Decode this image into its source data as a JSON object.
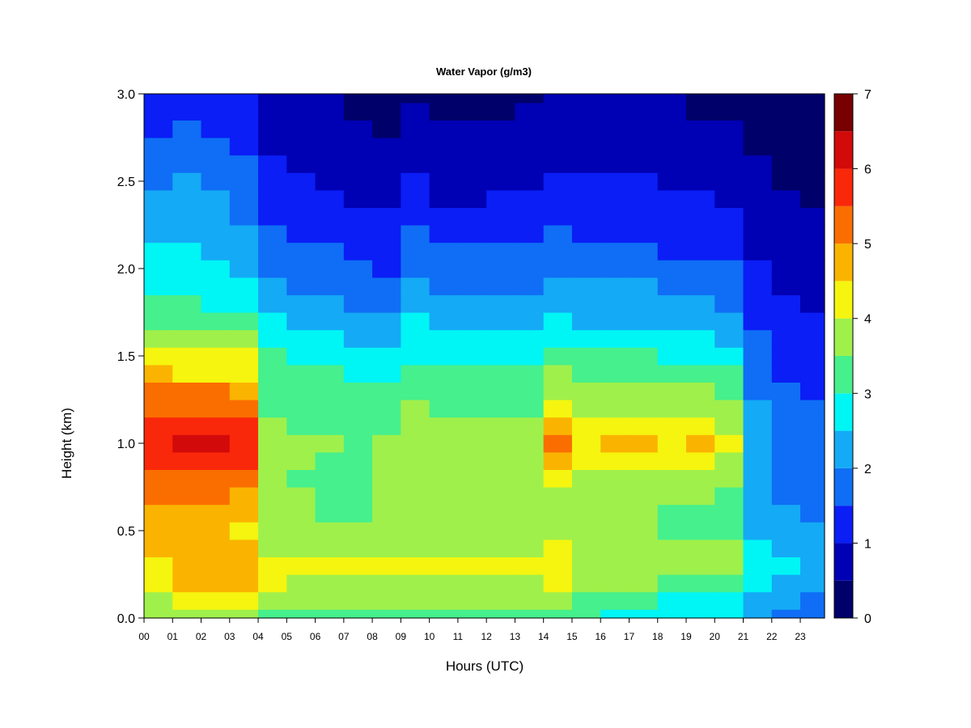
{
  "chart_data": {
    "type": "heatmap",
    "title": "Water Vapor (g/m3)",
    "xlabel": "Hours (UTC)",
    "ylabel": "Height (km)",
    "xlim": [
      0,
      23.85
    ],
    "ylim": [
      0,
      3.0
    ],
    "x_tick_labels": [
      "00",
      "01",
      "02",
      "03",
      "04",
      "05",
      "06",
      "07",
      "08",
      "09",
      "10",
      "11",
      "12",
      "13",
      "14",
      "15",
      "16",
      "17",
      "18",
      "19",
      "20",
      "21",
      "22",
      "23"
    ],
    "y_tick_values": [
      0.0,
      0.5,
      1.0,
      1.5,
      2.0,
      2.5,
      3.0
    ],
    "y_tick_labels": [
      "0.0",
      "0.5",
      "1.0",
      "1.5",
      "2.0",
      "2.5",
      "3.0"
    ],
    "colorbar": {
      "levels": [
        0,
        0.5,
        1,
        1.5,
        2,
        2.5,
        3,
        3.5,
        4,
        4.5,
        5,
        5.5,
        6,
        6.5,
        7
      ],
      "colors": [
        "#00006B",
        "#0000B4",
        "#0A1EF5",
        "#0F6EF5",
        "#14AAF5",
        "#00F5F5",
        "#46F08C",
        "#A0F04B",
        "#F5F50F",
        "#FAB400",
        "#FA6E00",
        "#FA280A",
        "#D20A0A",
        "#780000"
      ],
      "tick_values": [
        0,
        1,
        2,
        3,
        4,
        5,
        6,
        7
      ],
      "tick_labels": [
        "0",
        "1",
        "2",
        "3",
        "4",
        "5",
        "6",
        "7"
      ]
    },
    "grid": false,
    "legend": "colorbar-right",
    "heights_km": [
      0.0,
      0.1,
      0.2,
      0.3,
      0.4,
      0.5,
      0.6,
      0.7,
      0.8,
      0.9,
      1.0,
      1.1,
      1.2,
      1.3,
      1.4,
      1.5,
      1.6,
      1.7,
      1.8,
      1.9,
      2.0,
      2.1,
      2.2,
      2.3,
      2.4,
      2.5,
      2.6,
      2.7,
      2.8,
      2.9,
      3.0
    ],
    "series": [
      {
        "hour": 0.5,
        "values": [
          3.6,
          3.8,
          4.2,
          4.4,
          4.6,
          4.7,
          4.9,
          5.0,
          5.3,
          5.8,
          5.9,
          5.7,
          5.3,
          5.0,
          4.5,
          4.1,
          3.9,
          3.4,
          3.0,
          2.9,
          2.7,
          2.5,
          2.3,
          2.2,
          2.0,
          1.9,
          1.7,
          1.5,
          1.2,
          1.1,
          1.0
        ]
      },
      {
        "hour": 1.5,
        "values": [
          3.7,
          4.0,
          4.6,
          4.8,
          4.5,
          4.6,
          4.8,
          5.0,
          5.4,
          5.9,
          6.0,
          5.8,
          5.4,
          5.0,
          4.4,
          4.1,
          3.9,
          3.3,
          3.0,
          2.9,
          2.7,
          2.6,
          2.4,
          2.2,
          2.1,
          2.0,
          1.8,
          1.6,
          1.5,
          1.3,
          1.2
        ]
      },
      {
        "hour": 2.5,
        "values": [
          3.8,
          4.1,
          4.7,
          4.9,
          4.6,
          4.6,
          4.8,
          5.0,
          5.4,
          5.9,
          6.1,
          5.9,
          5.3,
          5.0,
          4.4,
          4.1,
          3.9,
          3.3,
          2.9,
          2.8,
          2.6,
          2.4,
          2.3,
          2.1,
          2.0,
          1.9,
          1.7,
          1.5,
          1.3,
          1.2,
          1.1
        ]
      },
      {
        "hour": 3.5,
        "values": [
          3.6,
          4.0,
          4.6,
          4.7,
          4.5,
          4.4,
          4.6,
          4.8,
          5.1,
          5.6,
          5.8,
          5.5,
          5.0,
          4.6,
          4.3,
          4.0,
          3.7,
          3.1,
          2.8,
          2.6,
          2.4,
          2.3,
          2.1,
          1.9,
          1.8,
          1.6,
          1.5,
          1.3,
          1.2,
          1.1,
          1.0
        ]
      },
      {
        "hour": 4.5,
        "values": [
          3.2,
          3.5,
          4.1,
          4.2,
          3.8,
          3.6,
          3.5,
          3.5,
          3.5,
          3.6,
          3.6,
          3.5,
          3.4,
          3.3,
          3.1,
          3.0,
          2.8,
          2.5,
          2.3,
          2.1,
          1.9,
          1.7,
          1.6,
          1.4,
          1.3,
          1.1,
          1.0,
          0.9,
          0.8,
          0.7,
          0.6
        ]
      },
      {
        "hour": 5.5,
        "values": [
          3.2,
          3.5,
          3.9,
          4.0,
          3.8,
          3.5,
          3.5,
          3.5,
          3.4,
          3.5,
          3.5,
          3.4,
          3.3,
          3.2,
          3.1,
          2.9,
          2.6,
          2.3,
          2.1,
          1.9,
          1.7,
          1.6,
          1.4,
          1.3,
          1.2,
          1.0,
          0.9,
          0.8,
          0.7,
          0.6,
          0.5
        ]
      },
      {
        "hour": 6.5,
        "values": [
          3.2,
          3.5,
          3.9,
          4.0,
          3.8,
          3.5,
          3.4,
          3.4,
          3.4,
          3.4,
          3.5,
          3.4,
          3.3,
          3.2,
          3.0,
          2.8,
          2.5,
          2.3,
          2.0,
          1.8,
          1.6,
          1.5,
          1.3,
          1.2,
          1.0,
          0.9,
          0.8,
          0.7,
          0.6,
          0.5,
          0.5
        ]
      },
      {
        "hour": 7.5,
        "values": [
          3.2,
          3.5,
          3.9,
          4.0,
          3.8,
          3.5,
          3.4,
          3.4,
          3.4,
          3.4,
          3.4,
          3.4,
          3.3,
          3.1,
          2.9,
          2.7,
          2.4,
          2.1,
          1.9,
          1.7,
          1.5,
          1.4,
          1.2,
          1.0,
          0.9,
          0.8,
          0.7,
          0.6,
          0.5,
          0.4,
          0.4
        ]
      },
      {
        "hour": 8.5,
        "values": [
          3.3,
          3.6,
          3.9,
          4.0,
          3.8,
          3.6,
          3.5,
          3.5,
          3.5,
          3.5,
          3.5,
          3.4,
          3.3,
          3.1,
          2.9,
          2.6,
          2.3,
          2.0,
          1.8,
          1.6,
          1.4,
          1.2,
          1.1,
          1.0,
          0.8,
          0.7,
          0.6,
          0.5,
          0.4,
          0.4,
          0.3
        ]
      },
      {
        "hour": 9.5,
        "values": [
          3.3,
          3.6,
          3.9,
          4.0,
          3.8,
          3.6,
          3.5,
          3.5,
          3.6,
          3.6,
          3.6,
          3.6,
          3.5,
          3.3,
          3.1,
          2.9,
          2.7,
          2.5,
          2.3,
          2.1,
          1.9,
          1.7,
          1.5,
          1.3,
          1.1,
          1.0,
          0.8,
          0.7,
          0.6,
          0.5,
          0.4
        ]
      },
      {
        "hour": 10.5,
        "values": [
          3.2,
          3.5,
          3.9,
          4.0,
          3.8,
          3.6,
          3.5,
          3.5,
          3.6,
          3.6,
          3.6,
          3.5,
          3.4,
          3.2,
          3.0,
          2.8,
          2.6,
          2.4,
          2.1,
          1.9,
          1.7,
          1.5,
          1.3,
          1.1,
          0.9,
          0.8,
          0.7,
          0.6,
          0.5,
          0.4,
          0.4
        ]
      },
      {
        "hour": 11.5,
        "values": [
          3.3,
          3.6,
          3.9,
          4.0,
          3.8,
          3.6,
          3.5,
          3.5,
          3.6,
          3.6,
          3.6,
          3.5,
          3.4,
          3.2,
          3.0,
          2.8,
          2.6,
          2.3,
          2.1,
          1.9,
          1.7,
          1.5,
          1.3,
          1.1,
          0.9,
          0.8,
          0.7,
          0.6,
          0.5,
          0.4,
          0.3
        ]
      },
      {
        "hour": 12.5,
        "values": [
          3.3,
          3.6,
          3.9,
          4.0,
          3.8,
          3.6,
          3.5,
          3.5,
          3.5,
          3.6,
          3.6,
          3.5,
          3.3,
          3.2,
          3.0,
          2.8,
          2.5,
          2.3,
          2.1,
          1.9,
          1.7,
          1.5,
          1.3,
          1.1,
          1.0,
          0.8,
          0.7,
          0.6,
          0.5,
          0.4,
          0.3
        ]
      },
      {
        "hour": 13.5,
        "values": [
          3.3,
          3.6,
          3.9,
          4.0,
          3.8,
          3.6,
          3.5,
          3.5,
          3.5,
          3.5,
          3.6,
          3.5,
          3.3,
          3.1,
          3.0,
          2.8,
          2.5,
          2.3,
          2.1,
          1.9,
          1.7,
          1.5,
          1.4,
          1.2,
          1.0,
          0.9,
          0.8,
          0.7,
          0.6,
          0.5,
          0.4
        ]
      },
      {
        "hour": 14.5,
        "values": [
          3.3,
          3.6,
          4.1,
          4.3,
          4.0,
          3.8,
          3.8,
          3.9,
          4.3,
          4.9,
          5.3,
          4.8,
          4.2,
          3.9,
          3.6,
          3.2,
          2.9,
          2.5,
          2.3,
          2.1,
          1.9,
          1.7,
          1.5,
          1.3,
          1.2,
          1.1,
          0.9,
          0.8,
          0.7,
          0.6,
          0.5
        ]
      },
      {
        "hour": 15.5,
        "values": [
          3.1,
          3.3,
          3.6,
          3.8,
          3.7,
          3.5,
          3.5,
          3.6,
          3.8,
          4.1,
          4.3,
          4.1,
          3.8,
          3.6,
          3.3,
          3.0,
          2.7,
          2.4,
          2.2,
          2.0,
          1.8,
          1.6,
          1.4,
          1.2,
          1.1,
          1.0,
          0.9,
          0.8,
          0.7,
          0.6,
          0.5
        ]
      },
      {
        "hour": 16.5,
        "values": [
          2.8,
          3.1,
          3.6,
          3.8,
          3.7,
          3.5,
          3.5,
          3.6,
          3.9,
          4.2,
          4.5,
          4.2,
          3.9,
          3.6,
          3.3,
          3.0,
          2.7,
          2.4,
          2.2,
          2.0,
          1.8,
          1.6,
          1.4,
          1.3,
          1.1,
          1.0,
          0.9,
          0.8,
          0.7,
          0.6,
          0.5
        ]
      },
      {
        "hour": 17.5,
        "values": [
          2.7,
          3.0,
          3.5,
          3.8,
          3.7,
          3.5,
          3.5,
          3.6,
          3.9,
          4.3,
          4.6,
          4.3,
          3.9,
          3.6,
          3.3,
          3.0,
          2.7,
          2.4,
          2.2,
          2.0,
          1.7,
          1.5,
          1.4,
          1.2,
          1.1,
          1.0,
          0.9,
          0.8,
          0.7,
          0.6,
          0.5
        ]
      },
      {
        "hour": 18.5,
        "values": [
          2.6,
          2.9,
          3.3,
          3.6,
          3.6,
          3.4,
          3.4,
          3.5,
          3.8,
          4.1,
          4.3,
          4.1,
          3.8,
          3.5,
          3.2,
          2.9,
          2.6,
          2.3,
          2.0,
          1.8,
          1.6,
          1.4,
          1.3,
          1.1,
          1.0,
          0.9,
          0.8,
          0.7,
          0.6,
          0.5,
          0.5
        ]
      },
      {
        "hour": 19.5,
        "values": [
          2.7,
          2.9,
          3.4,
          3.7,
          3.6,
          3.4,
          3.4,
          3.6,
          3.9,
          4.3,
          4.5,
          4.2,
          3.8,
          3.5,
          3.2,
          2.9,
          2.6,
          2.3,
          2.0,
          1.8,
          1.6,
          1.4,
          1.3,
          1.1,
          1.0,
          0.8,
          0.7,
          0.6,
          0.5,
          0.4,
          0.4
        ]
      },
      {
        "hour": 20.5,
        "values": [
          2.6,
          2.8,
          3.2,
          3.5,
          3.5,
          3.3,
          3.3,
          3.4,
          3.7,
          3.9,
          4.1,
          3.9,
          3.6,
          3.3,
          3.0,
          2.7,
          2.4,
          2.1,
          1.9,
          1.7,
          1.5,
          1.3,
          1.2,
          1.0,
          0.9,
          0.8,
          0.7,
          0.6,
          0.5,
          0.4,
          0.3
        ]
      },
      {
        "hour": 21.5,
        "values": [
          2.1,
          2.4,
          2.6,
          2.7,
          2.6,
          2.4,
          2.3,
          2.2,
          2.2,
          2.2,
          2.2,
          2.1,
          2.0,
          1.9,
          1.8,
          1.6,
          1.5,
          1.3,
          1.2,
          1.1,
          1.0,
          0.9,
          0.8,
          0.7,
          0.6,
          0.5,
          0.5,
          0.4,
          0.4,
          0.3,
          0.3
        ]
      },
      {
        "hour": 22.5,
        "values": [
          1.8,
          2.0,
          2.3,
          2.5,
          2.4,
          2.2,
          2.0,
          1.9,
          1.8,
          1.8,
          1.8,
          1.7,
          1.6,
          1.5,
          1.4,
          1.3,
          1.2,
          1.1,
          1.0,
          0.9,
          0.8,
          0.7,
          0.6,
          0.6,
          0.5,
          0.4,
          0.4,
          0.3,
          0.3,
          0.2,
          0.2
        ]
      },
      {
        "hour": 23.5,
        "values": [
          1.7,
          1.9,
          2.2,
          2.4,
          2.3,
          2.1,
          1.9,
          1.8,
          1.7,
          1.7,
          1.7,
          1.6,
          1.5,
          1.4,
          1.3,
          1.2,
          1.1,
          1.0,
          0.9,
          0.8,
          0.7,
          0.6,
          0.6,
          0.5,
          0.4,
          0.4,
          0.3,
          0.3,
          0.2,
          0.2,
          0.2
        ]
      }
    ]
  }
}
